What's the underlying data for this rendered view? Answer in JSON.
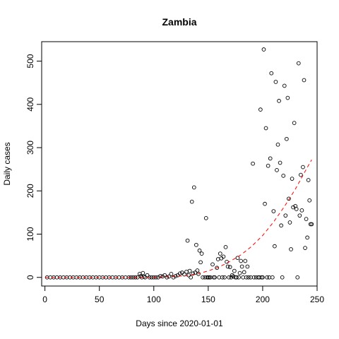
{
  "chart_data": {
    "type": "scatter",
    "title": "Zambia",
    "xlabel": "Days since 2020-01-01",
    "ylabel": "Daily cases",
    "xlim": [
      -3,
      250
    ],
    "ylim": [
      -20,
      545
    ],
    "xticks": [
      0,
      50,
      100,
      150,
      200,
      250
    ],
    "yticks": [
      0,
      100,
      200,
      300,
      400,
      500
    ],
    "grid": false,
    "legend": "none",
    "point_color": "#000000",
    "fit_color": "#ff0000",
    "points": [
      [
        2,
        0
      ],
      [
        5,
        0
      ],
      [
        8,
        0
      ],
      [
        11,
        0
      ],
      [
        14,
        0
      ],
      [
        17,
        0
      ],
      [
        20,
        0
      ],
      [
        23,
        0
      ],
      [
        26,
        0
      ],
      [
        29,
        0
      ],
      [
        32,
        0
      ],
      [
        35,
        0
      ],
      [
        38,
        0
      ],
      [
        41,
        0
      ],
      [
        44,
        0
      ],
      [
        47,
        0
      ],
      [
        50,
        0
      ],
      [
        53,
        0
      ],
      [
        56,
        0
      ],
      [
        59,
        0
      ],
      [
        62,
        0
      ],
      [
        65,
        0
      ],
      [
        68,
        0
      ],
      [
        71,
        0
      ],
      [
        74,
        0
      ],
      [
        77,
        0
      ],
      [
        79,
        0
      ],
      [
        81,
        0
      ],
      [
        83,
        0
      ],
      [
        85,
        0
      ],
      [
        87,
        8
      ],
      [
        88,
        3
      ],
      [
        89,
        0
      ],
      [
        90,
        10
      ],
      [
        91,
        2
      ],
      [
        92,
        0
      ],
      [
        94,
        5
      ],
      [
        96,
        0
      ],
      [
        98,
        0
      ],
      [
        100,
        0
      ],
      [
        102,
        0
      ],
      [
        104,
        0
      ],
      [
        106,
        3
      ],
      [
        108,
        2
      ],
      [
        110,
        5
      ],
      [
        112,
        0
      ],
      [
        114,
        2
      ],
      [
        116,
        8
      ],
      [
        118,
        0
      ],
      [
        120,
        3
      ],
      [
        122,
        5
      ],
      [
        124,
        9
      ],
      [
        126,
        11
      ],
      [
        128,
        7
      ],
      [
        130,
        13
      ],
      [
        131,
        85
      ],
      [
        132,
        5
      ],
      [
        133,
        15
      ],
      [
        134,
        0
      ],
      [
        135,
        175
      ],
      [
        136,
        9
      ],
      [
        137,
        208
      ],
      [
        138,
        11
      ],
      [
        139,
        75
      ],
      [
        140,
        16
      ],
      [
        141,
        8
      ],
      [
        142,
        62
      ],
      [
        143,
        35
      ],
      [
        144,
        55
      ],
      [
        145,
        0
      ],
      [
        147,
        0
      ],
      [
        148,
        137
      ],
      [
        149,
        0
      ],
      [
        150,
        0
      ],
      [
        151,
        0
      ],
      [
        152,
        0
      ],
      [
        154,
        30
      ],
      [
        155,
        0
      ],
      [
        156,
        0
      ],
      [
        158,
        22
      ],
      [
        159,
        42
      ],
      [
        160,
        0
      ],
      [
        161,
        55
      ],
      [
        162,
        44
      ],
      [
        163,
        0
      ],
      [
        164,
        48
      ],
      [
        165,
        0
      ],
      [
        166,
        70
      ],
      [
        167,
        36
      ],
      [
        168,
        25
      ],
      [
        169,
        0
      ],
      [
        170,
        24
      ],
      [
        171,
        0
      ],
      [
        172,
        5
      ],
      [
        173,
        2
      ],
      [
        174,
        15
      ],
      [
        175,
        0
      ],
      [
        176,
        0
      ],
      [
        177,
        45
      ],
      [
        178,
        0
      ],
      [
        179,
        10
      ],
      [
        180,
        38
      ],
      [
        181,
        25
      ],
      [
        182,
        0
      ],
      [
        183,
        12
      ],
      [
        184,
        38
      ],
      [
        185,
        0
      ],
      [
        186,
        25
      ],
      [
        187,
        0
      ],
      [
        189,
        0
      ],
      [
        191,
        263
      ],
      [
        192,
        0
      ],
      [
        194,
        0
      ],
      [
        196,
        0
      ],
      [
        197,
        0
      ],
      [
        198,
        388
      ],
      [
        199,
        0
      ],
      [
        200,
        0
      ],
      [
        201,
        527
      ],
      [
        202,
        170
      ],
      [
        203,
        345
      ],
      [
        204,
        0
      ],
      [
        205,
        258
      ],
      [
        206,
        0
      ],
      [
        207,
        275
      ],
      [
        208,
        472
      ],
      [
        209,
        0
      ],
      [
        210,
        153
      ],
      [
        211,
        72
      ],
      [
        212,
        452
      ],
      [
        213,
        248
      ],
      [
        214,
        307
      ],
      [
        215,
        408
      ],
      [
        216,
        265
      ],
      [
        217,
        120
      ],
      [
        218,
        0
      ],
      [
        219,
        235
      ],
      [
        220,
        443
      ],
      [
        221,
        143
      ],
      [
        222,
        320
      ],
      [
        223,
        415
      ],
      [
        224,
        182
      ],
      [
        225,
        127
      ],
      [
        226,
        65
      ],
      [
        227,
        228
      ],
      [
        228,
        162
      ],
      [
        229,
        357
      ],
      [
        230,
        165
      ],
      [
        231,
        158
      ],
      [
        232,
        0
      ],
      [
        233,
        495
      ],
      [
        234,
        143
      ],
      [
        235,
        237
      ],
      [
        236,
        155
      ],
      [
        237,
        255
      ],
      [
        238,
        456
      ],
      [
        239,
        68
      ],
      [
        240,
        135
      ],
      [
        241,
        92
      ],
      [
        242,
        225
      ],
      [
        243,
        178
      ],
      [
        244,
        123
      ],
      [
        245,
        123
      ]
    ],
    "fit_curve": [
      [
        0,
        0
      ],
      [
        20,
        0
      ],
      [
        40,
        0
      ],
      [
        60,
        0
      ],
      [
        80,
        0
      ],
      [
        100,
        0.5
      ],
      [
        110,
        1
      ],
      [
        120,
        2
      ],
      [
        130,
        4
      ],
      [
        140,
        8
      ],
      [
        150,
        15
      ],
      [
        160,
        24
      ],
      [
        170,
        37
      ],
      [
        180,
        52
      ],
      [
        190,
        72
      ],
      [
        200,
        97
      ],
      [
        210,
        128
      ],
      [
        220,
        164
      ],
      [
        230,
        204
      ],
      [
        240,
        250
      ],
      [
        245,
        272
      ]
    ]
  }
}
